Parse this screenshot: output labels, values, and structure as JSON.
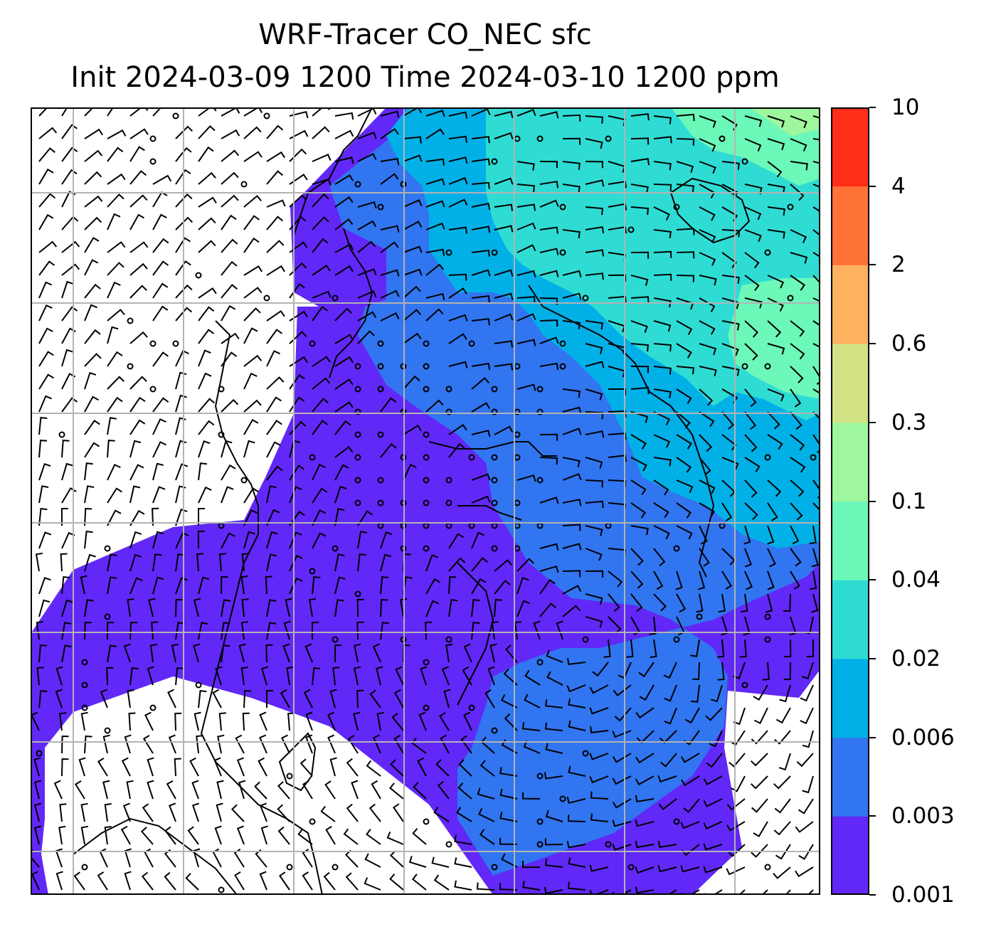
{
  "title": {
    "line1": "WRF-Tracer CO_NEC sfc",
    "line2": "Init 2024-03-09 1200 Time 2024-03-10 1200 ppm"
  },
  "colorbar": {
    "levels": [
      "0.001",
      "0.003",
      "0.006",
      "0.02",
      "0.04",
      "0.1",
      "0.3",
      "0.6",
      "2",
      "4",
      "10"
    ],
    "colors": [
      "#6128f8",
      "#3175f0",
      "#02b0e8",
      "#2fdcd4",
      "#6cf8b9",
      "#9ef79c",
      "#d1e285",
      "#feb260",
      "#fe7236",
      "#fe2f17"
    ]
  },
  "map": {
    "field": "CO_NEC surface concentration",
    "gridlines": true,
    "wind_barbs": true,
    "coastlines": true,
    "line_color": "#000000",
    "grid_color": "#b3b3b3",
    "background": "#ffffff"
  }
}
